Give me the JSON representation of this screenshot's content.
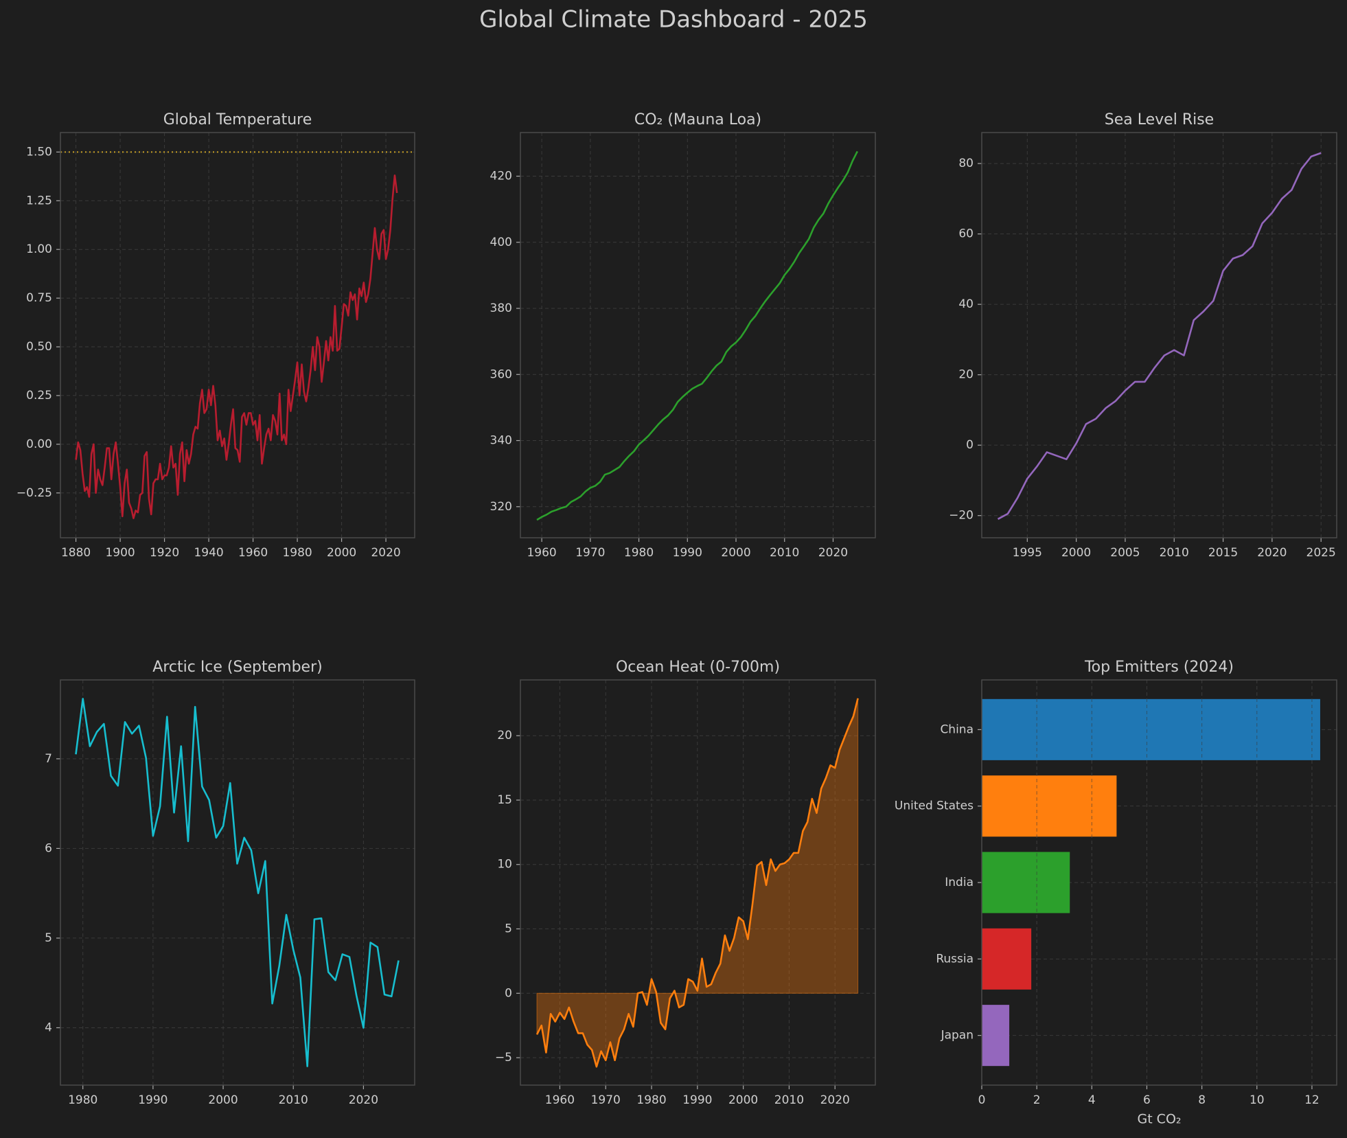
{
  "title": "Global Climate Dashboard - 2025",
  "chart_data": [
    {
      "type": "line",
      "title": "Global Temperature",
      "color": "#b81d2f",
      "grid": true,
      "hline": 1.5,
      "hline_color": "#c9a227",
      "xlim": [
        1873,
        2033
      ],
      "ylim": [
        -0.48,
        1.6
      ],
      "xticks": [
        1880,
        1900,
        1920,
        1940,
        1960,
        1980,
        2000,
        2020
      ],
      "yticks": [
        {
          "value": -0.25,
          "label": "−0.25"
        },
        {
          "value": 0,
          "label": "0.00"
        },
        0.25,
        {
          "value": 0.5,
          "label": "0.50"
        },
        0.75,
        {
          "value": 1,
          "label": "1.00"
        },
        1.25,
        {
          "value": 1.5,
          "label": "1.50"
        }
      ],
      "x": [
        1880,
        1881,
        1882,
        1883,
        1884,
        1885,
        1886,
        1887,
        1888,
        1889,
        1890,
        1891,
        1892,
        1893,
        1894,
        1895,
        1896,
        1897,
        1898,
        1899,
        1900,
        1901,
        1902,
        1903,
        1904,
        1905,
        1906,
        1907,
        1908,
        1909,
        1910,
        1911,
        1912,
        1913,
        1914,
        1915,
        1916,
        1917,
        1918,
        1919,
        1920,
        1921,
        1922,
        1923,
        1924,
        1925,
        1926,
        1927,
        1928,
        1929,
        1930,
        1931,
        1932,
        1933,
        1934,
        1935,
        1936,
        1937,
        1938,
        1939,
        1940,
        1941,
        1942,
        1943,
        1944,
        1945,
        1946,
        1947,
        1948,
        1949,
        1950,
        1951,
        1952,
        1953,
        1954,
        1955,
        1956,
        1957,
        1958,
        1959,
        1960,
        1961,
        1962,
        1963,
        1964,
        1965,
        1966,
        1967,
        1968,
        1969,
        1970,
        1971,
        1972,
        1973,
        1974,
        1975,
        1976,
        1977,
        1978,
        1979,
        1980,
        1981,
        1982,
        1983,
        1984,
        1985,
        1986,
        1987,
        1988,
        1989,
        1990,
        1991,
        1992,
        1993,
        1994,
        1995,
        1996,
        1997,
        1998,
        1999,
        2000,
        2001,
        2002,
        2003,
        2004,
        2005,
        2006,
        2007,
        2008,
        2009,
        2010,
        2011,
        2012,
        2013,
        2014,
        2015,
        2016,
        2017,
        2018,
        2019,
        2020,
        2021,
        2022,
        2023,
        2024,
        2025
      ],
      "values": [
        -0.08,
        0.01,
        -0.03,
        -0.15,
        -0.24,
        -0.22,
        -0.27,
        -0.05,
        0.0,
        -0.25,
        -0.13,
        -0.18,
        -0.21,
        -0.12,
        -0.02,
        -0.02,
        -0.18,
        -0.05,
        0.01,
        -0.1,
        -0.22,
        -0.37,
        -0.2,
        -0.13,
        -0.3,
        -0.33,
        -0.38,
        -0.34,
        -0.35,
        -0.26,
        -0.25,
        -0.06,
        -0.04,
        -0.28,
        -0.36,
        -0.2,
        -0.18,
        -0.18,
        -0.1,
        -0.18,
        -0.16,
        -0.16,
        -0.12,
        -0.01,
        -0.12,
        -0.1,
        -0.26,
        -0.05,
        0.01,
        -0.19,
        -0.03,
        -0.1,
        -0.05,
        0.05,
        0.09,
        0.08,
        0.21,
        0.28,
        0.16,
        0.18,
        0.28,
        0.2,
        0.3,
        0.2,
        0.02,
        0.07,
        -0.01,
        0.03,
        -0.08,
        0.0,
        0.1,
        0.18,
        -0.02,
        -0.03,
        -0.09,
        0.14,
        0.16,
        0.1,
        0.16,
        0.16,
        0.1,
        0.12,
        0.02,
        0.15,
        -0.1,
        -0.02,
        0.05,
        0.08,
        0.02,
        0.15,
        0.12,
        0.05,
        0.26,
        0.02,
        0.05,
        0.0,
        0.28,
        0.17,
        0.25,
        0.33,
        0.42,
        0.25,
        0.41,
        0.27,
        0.22,
        0.29,
        0.38,
        0.5,
        0.38,
        0.55,
        0.5,
        0.32,
        0.42,
        0.53,
        0.43,
        0.55,
        0.48,
        0.71,
        0.48,
        0.49,
        0.6,
        0.72,
        0.71,
        0.66,
        0.78,
        0.74,
        0.77,
        0.64,
        0.8,
        0.76,
        0.83,
        0.73,
        0.77,
        0.85,
        0.98,
        1.11,
        1.0,
        0.95,
        1.08,
        1.1,
        0.95,
        1.0,
        1.1,
        1.26,
        1.38,
        1.29
      ]
    },
    {
      "type": "line",
      "title": "CO₂ (Mauna Loa)",
      "color": "#2ca02c",
      "grid": true,
      "xlim": [
        1955.6,
        2028.7
      ],
      "ylim": [
        310.6,
        433.2
      ],
      "xticks": [
        1960,
        1970,
        1980,
        1990,
        2000,
        2010,
        2020
      ],
      "yticks": [
        320,
        340,
        360,
        380,
        400,
        420
      ],
      "x": [
        1959,
        1960,
        1961,
        1962,
        1963,
        1964,
        1965,
        1966,
        1967,
        1968,
        1969,
        1970,
        1971,
        1972,
        1973,
        1974,
        1975,
        1976,
        1977,
        1978,
        1979,
        1980,
        1981,
        1982,
        1983,
        1984,
        1985,
        1986,
        1987,
        1988,
        1989,
        1990,
        1991,
        1992,
        1993,
        1994,
        1995,
        1996,
        1997,
        1998,
        1999,
        2000,
        2001,
        2002,
        2003,
        2004,
        2005,
        2006,
        2007,
        2008,
        2009,
        2010,
        2011,
        2012,
        2013,
        2014,
        2015,
        2016,
        2017,
        2018,
        2019,
        2020,
        2021,
        2022,
        2023,
        2024,
        2025
      ],
      "values": [
        316.0,
        316.9,
        317.6,
        318.5,
        319.0,
        319.6,
        320.0,
        321.4,
        322.2,
        323.1,
        324.6,
        325.7,
        326.3,
        327.5,
        329.7,
        330.2,
        331.1,
        332.0,
        333.8,
        335.4,
        336.8,
        338.8,
        340.1,
        341.5,
        343.2,
        344.9,
        346.4,
        347.6,
        349.3,
        351.7,
        353.2,
        354.5,
        355.7,
        356.5,
        357.2,
        359.0,
        361.0,
        362.7,
        363.9,
        366.8,
        368.5,
        369.7,
        371.3,
        373.5,
        376.0,
        377.7,
        380.0,
        382.1,
        384.0,
        385.8,
        387.6,
        390.1,
        391.9,
        394.1,
        396.7,
        398.8,
        401.0,
        404.4,
        406.8,
        408.7,
        411.7,
        414.2,
        416.5,
        418.6,
        421.1,
        424.6,
        427.5
      ]
    },
    {
      "type": "line",
      "title": "Sea Level Rise",
      "color": "#9467bd",
      "grid": true,
      "xlim": [
        1990.35,
        2026.6
      ],
      "ylim": [
        -26.3,
        88.8
      ],
      "xticks": [
        1995,
        2000,
        2005,
        2010,
        2015,
        2020,
        2025
      ],
      "yticks": [
        {
          "value": -20,
          "label": "−20"
        },
        0,
        20,
        40,
        60,
        80
      ],
      "x": [
        1992,
        1993,
        1994,
        1995,
        1996,
        1997,
        1998,
        1999,
        2000,
        2001,
        2002,
        2003,
        2004,
        2005,
        2006,
        2007,
        2008,
        2009,
        2010,
        2011,
        2012,
        2013,
        2014,
        2015,
        2016,
        2017,
        2018,
        2019,
        2020,
        2021,
        2022,
        2023,
        2024,
        2025
      ],
      "values": [
        -21,
        -19.5,
        -15,
        -9.5,
        -6,
        -2,
        -3,
        -4,
        0.5,
        6,
        7.5,
        10.5,
        12.5,
        15.5,
        18,
        18,
        22,
        25.5,
        27,
        25.5,
        35.5,
        38,
        41,
        49.5,
        53,
        54,
        56.5,
        63,
        66,
        70,
        72.5,
        78.5,
        82,
        83
      ]
    },
    {
      "type": "line",
      "title": "Arctic Ice (September)",
      "color": "#17becf",
      "grid": true,
      "xlim": [
        1976.8,
        2027.3
      ],
      "ylim": [
        3.36,
        7.88
      ],
      "xticks": [
        1980,
        1990,
        2000,
        2010,
        2020
      ],
      "yticks": [
        4,
        5,
        6,
        7
      ],
      "x": [
        1979,
        1980,
        1981,
        1982,
        1983,
        1984,
        1985,
        1986,
        1987,
        1988,
        1989,
        1990,
        1991,
        1992,
        1993,
        1994,
        1995,
        1996,
        1997,
        1998,
        1999,
        2000,
        2001,
        2002,
        2003,
        2004,
        2005,
        2006,
        2007,
        2008,
        2009,
        2010,
        2011,
        2012,
        2013,
        2014,
        2015,
        2016,
        2017,
        2018,
        2019,
        2020,
        2021,
        2022,
        2023,
        2024,
        2025
      ],
      "values": [
        7.05,
        7.67,
        7.14,
        7.3,
        7.39,
        6.81,
        6.7,
        7.41,
        7.28,
        7.37,
        7.01,
        6.14,
        6.47,
        7.47,
        6.4,
        7.14,
        6.08,
        7.58,
        6.69,
        6.54,
        6.12,
        6.25,
        6.73,
        5.83,
        6.12,
        5.98,
        5.5,
        5.86,
        4.27,
        4.69,
        5.26,
        4.87,
        4.56,
        3.57,
        5.21,
        5.22,
        4.62,
        4.53,
        4.82,
        4.79,
        4.36,
        4.0,
        4.95,
        4.9,
        4.37,
        4.35,
        4.75
      ]
    },
    {
      "type": "area",
      "title": "Ocean Heat (0-700m)",
      "color": "#ff7f0e",
      "fill_opacity": 0.35,
      "grid": true,
      "xlim": [
        1951.4,
        2028.8
      ],
      "ylim": [
        -7.13,
        24.33
      ],
      "xticks": [
        1960,
        1970,
        1980,
        1990,
        2000,
        2010,
        2020
      ],
      "yticks": [
        {
          "value": -5,
          "label": "−5"
        },
        0,
        5,
        10,
        15,
        20
      ],
      "x": [
        1955,
        1956,
        1957,
        1958,
        1959,
        1960,
        1961,
        1962,
        1963,
        1964,
        1965,
        1966,
        1967,
        1968,
        1969,
        1970,
        1971,
        1972,
        1973,
        1974,
        1975,
        1976,
        1977,
        1978,
        1979,
        1980,
        1981,
        1982,
        1983,
        1984,
        1985,
        1986,
        1987,
        1988,
        1989,
        1990,
        1991,
        1992,
        1993,
        1994,
        1995,
        1996,
        1997,
        1998,
        1999,
        2000,
        2001,
        2002,
        2003,
        2004,
        2005,
        2006,
        2007,
        2008,
        2009,
        2010,
        2011,
        2012,
        2013,
        2014,
        2015,
        2016,
        2017,
        2018,
        2019,
        2020,
        2021,
        2022,
        2023,
        2024,
        2025
      ],
      "values": [
        -3.2,
        -2.5,
        -4.6,
        -1.6,
        -2.2,
        -1.5,
        -2.0,
        -1.1,
        -2.2,
        -3.1,
        -3.1,
        -4.0,
        -4.4,
        -5.7,
        -4.5,
        -5.2,
        -3.8,
        -5.2,
        -3.5,
        -2.8,
        -1.6,
        -2.6,
        0.0,
        0.1,
        -0.9,
        1.1,
        0.1,
        -2.3,
        -2.8,
        -0.4,
        0.2,
        -1.1,
        -0.9,
        1.1,
        0.9,
        0.2,
        2.7,
        0.5,
        0.7,
        1.6,
        2.3,
        4.5,
        3.3,
        4.3,
        5.9,
        5.6,
        4.2,
        6.9,
        9.9,
        10.2,
        8.4,
        10.4,
        9.5,
        10.0,
        10.1,
        10.4,
        10.9,
        10.9,
        12.6,
        13.3,
        15.1,
        14.0,
        15.9,
        16.7,
        17.7,
        17.5,
        18.9,
        19.8,
        20.7,
        21.5,
        22.9
      ]
    },
    {
      "type": "barh",
      "title": "Top Emitters (2024)",
      "xlabel": "Gt CO₂",
      "grid": true,
      "xlim": [
        0,
        12.9
      ],
      "xticks": [
        0,
        2,
        4,
        6,
        8,
        10,
        12
      ],
      "categories": [
        "China",
        "United States",
        "India",
        "Russia",
        "Japan"
      ],
      "values": [
        12.3,
        4.9,
        3.2,
        1.8,
        1.0
      ],
      "colors": [
        "#1f77b4",
        "#ff7f0e",
        "#2ca02c",
        "#d62728",
        "#9467bd"
      ]
    }
  ]
}
